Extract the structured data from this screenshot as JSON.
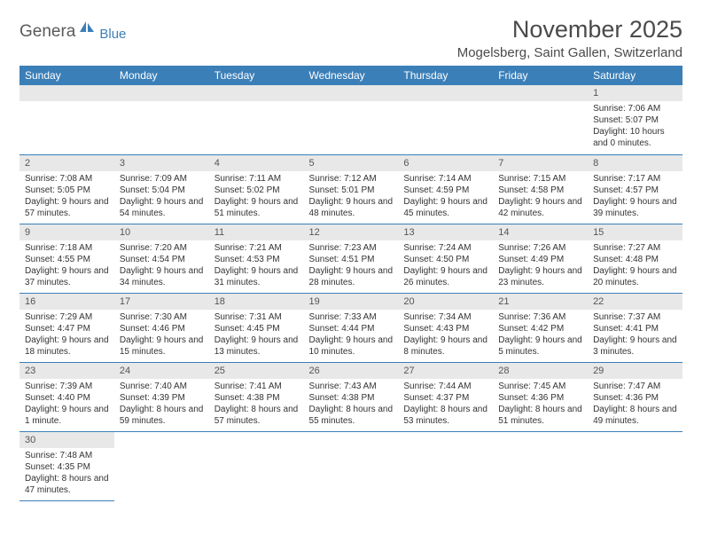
{
  "logo": {
    "main": "Genera",
    "sub": "Blue"
  },
  "title": "November 2025",
  "location": "Mogelsberg, Saint Gallen, Switzerland",
  "colors": {
    "header_bg": "#3b7fb8",
    "header_text": "#ffffff",
    "daynum_bg": "#e8e8e8",
    "border": "#3b7fb8",
    "text": "#333333"
  },
  "columns": [
    "Sunday",
    "Monday",
    "Tuesday",
    "Wednesday",
    "Thursday",
    "Friday",
    "Saturday"
  ],
  "weeks": [
    [
      null,
      null,
      null,
      null,
      null,
      null,
      {
        "n": "1",
        "sr": "7:06 AM",
        "ss": "5:07 PM",
        "dl": "10 hours and 0 minutes."
      }
    ],
    [
      {
        "n": "2",
        "sr": "7:08 AM",
        "ss": "5:05 PM",
        "dl": "9 hours and 57 minutes."
      },
      {
        "n": "3",
        "sr": "7:09 AM",
        "ss": "5:04 PM",
        "dl": "9 hours and 54 minutes."
      },
      {
        "n": "4",
        "sr": "7:11 AM",
        "ss": "5:02 PM",
        "dl": "9 hours and 51 minutes."
      },
      {
        "n": "5",
        "sr": "7:12 AM",
        "ss": "5:01 PM",
        "dl": "9 hours and 48 minutes."
      },
      {
        "n": "6",
        "sr": "7:14 AM",
        "ss": "4:59 PM",
        "dl": "9 hours and 45 minutes."
      },
      {
        "n": "7",
        "sr": "7:15 AM",
        "ss": "4:58 PM",
        "dl": "9 hours and 42 minutes."
      },
      {
        "n": "8",
        "sr": "7:17 AM",
        "ss": "4:57 PM",
        "dl": "9 hours and 39 minutes."
      }
    ],
    [
      {
        "n": "9",
        "sr": "7:18 AM",
        "ss": "4:55 PM",
        "dl": "9 hours and 37 minutes."
      },
      {
        "n": "10",
        "sr": "7:20 AM",
        "ss": "4:54 PM",
        "dl": "9 hours and 34 minutes."
      },
      {
        "n": "11",
        "sr": "7:21 AM",
        "ss": "4:53 PM",
        "dl": "9 hours and 31 minutes."
      },
      {
        "n": "12",
        "sr": "7:23 AM",
        "ss": "4:51 PM",
        "dl": "9 hours and 28 minutes."
      },
      {
        "n": "13",
        "sr": "7:24 AM",
        "ss": "4:50 PM",
        "dl": "9 hours and 26 minutes."
      },
      {
        "n": "14",
        "sr": "7:26 AM",
        "ss": "4:49 PM",
        "dl": "9 hours and 23 minutes."
      },
      {
        "n": "15",
        "sr": "7:27 AM",
        "ss": "4:48 PM",
        "dl": "9 hours and 20 minutes."
      }
    ],
    [
      {
        "n": "16",
        "sr": "7:29 AM",
        "ss": "4:47 PM",
        "dl": "9 hours and 18 minutes."
      },
      {
        "n": "17",
        "sr": "7:30 AM",
        "ss": "4:46 PM",
        "dl": "9 hours and 15 minutes."
      },
      {
        "n": "18",
        "sr": "7:31 AM",
        "ss": "4:45 PM",
        "dl": "9 hours and 13 minutes."
      },
      {
        "n": "19",
        "sr": "7:33 AM",
        "ss": "4:44 PM",
        "dl": "9 hours and 10 minutes."
      },
      {
        "n": "20",
        "sr": "7:34 AM",
        "ss": "4:43 PM",
        "dl": "9 hours and 8 minutes."
      },
      {
        "n": "21",
        "sr": "7:36 AM",
        "ss": "4:42 PM",
        "dl": "9 hours and 5 minutes."
      },
      {
        "n": "22",
        "sr": "7:37 AM",
        "ss": "4:41 PM",
        "dl": "9 hours and 3 minutes."
      }
    ],
    [
      {
        "n": "23",
        "sr": "7:39 AM",
        "ss": "4:40 PM",
        "dl": "9 hours and 1 minute."
      },
      {
        "n": "24",
        "sr": "7:40 AM",
        "ss": "4:39 PM",
        "dl": "8 hours and 59 minutes."
      },
      {
        "n": "25",
        "sr": "7:41 AM",
        "ss": "4:38 PM",
        "dl": "8 hours and 57 minutes."
      },
      {
        "n": "26",
        "sr": "7:43 AM",
        "ss": "4:38 PM",
        "dl": "8 hours and 55 minutes."
      },
      {
        "n": "27",
        "sr": "7:44 AM",
        "ss": "4:37 PM",
        "dl": "8 hours and 53 minutes."
      },
      {
        "n": "28",
        "sr": "7:45 AM",
        "ss": "4:36 PM",
        "dl": "8 hours and 51 minutes."
      },
      {
        "n": "29",
        "sr": "7:47 AM",
        "ss": "4:36 PM",
        "dl": "8 hours and 49 minutes."
      }
    ],
    [
      {
        "n": "30",
        "sr": "7:48 AM",
        "ss": "4:35 PM",
        "dl": "8 hours and 47 minutes."
      },
      null,
      null,
      null,
      null,
      null,
      null
    ]
  ],
  "labels": {
    "sunrise": "Sunrise: ",
    "sunset": "Sunset: ",
    "daylight": "Daylight: "
  }
}
